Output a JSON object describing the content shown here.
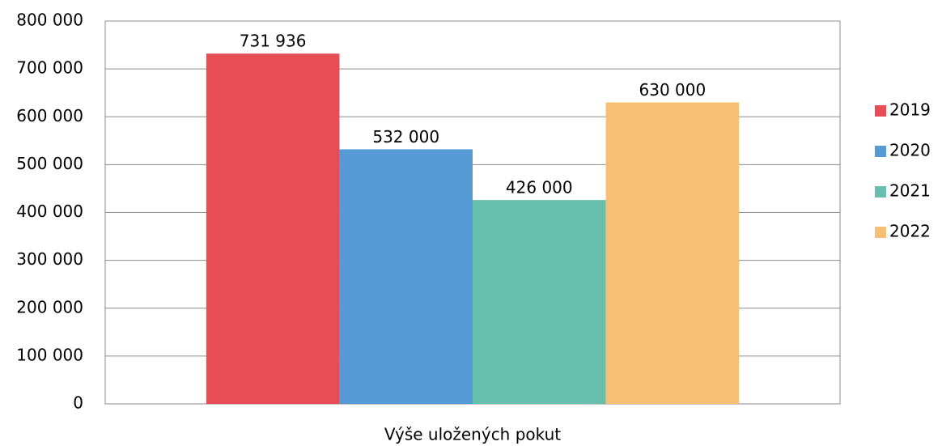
{
  "chart_data": {
    "type": "bar",
    "categories": [
      "Výše uložených pokut"
    ],
    "series": [
      {
        "name": "2019",
        "color": "#e84c55",
        "values": [
          731936
        ],
        "value_labels": [
          "731 936"
        ]
      },
      {
        "name": "2020",
        "color": "#559ad4",
        "values": [
          532000
        ],
        "value_labels": [
          "532 000"
        ]
      },
      {
        "name": "2021",
        "color": "#67bfae",
        "values": [
          426000
        ],
        "value_labels": [
          "426 000"
        ]
      },
      {
        "name": "2022",
        "color": "#f7bf73",
        "values": [
          630000
        ],
        "value_labels": [
          "630 000"
        ]
      }
    ],
    "ylim": [
      0,
      800000
    ],
    "yticks": [
      0,
      {
        "value": 100000,
        "label": "100 000"
      },
      {
        "value": 200000,
        "label": "200 000"
      },
      {
        "value": 300000,
        "label": "300 000"
      },
      {
        "value": 400000,
        "label": "400 000"
      },
      {
        "value": 500000,
        "label": "500 000"
      },
      {
        "value": 600000,
        "label": "600 000"
      },
      {
        "value": 700000,
        "label": "700 000"
      },
      {
        "value": 800000,
        "label": "800 000"
      }
    ],
    "grid": true,
    "legend": "right"
  }
}
